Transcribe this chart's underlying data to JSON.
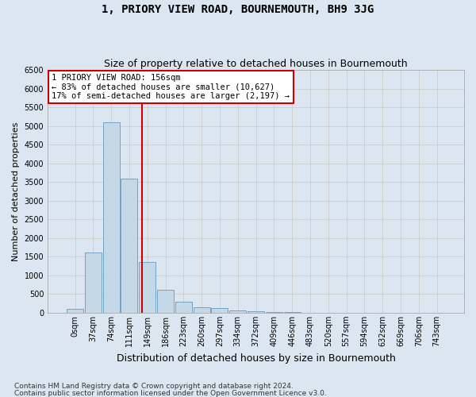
{
  "title": "1, PRIORY VIEW ROAD, BOURNEMOUTH, BH9 3JG",
  "subtitle": "Size of property relative to detached houses in Bournemouth",
  "xlabel": "Distribution of detached houses by size in Bournemouth",
  "ylabel": "Number of detached properties",
  "footnote1": "Contains HM Land Registry data © Crown copyright and database right 2024.",
  "footnote2": "Contains public sector information licensed under the Open Government Licence v3.0.",
  "bar_labels": [
    "0sqm",
    "37sqm",
    "74sqm",
    "111sqm",
    "149sqm",
    "186sqm",
    "223sqm",
    "260sqm",
    "297sqm",
    "334sqm",
    "372sqm",
    "409sqm",
    "446sqm",
    "483sqm",
    "520sqm",
    "557sqm",
    "594sqm",
    "632sqm",
    "669sqm",
    "706sqm",
    "743sqm"
  ],
  "bar_values": [
    100,
    1620,
    5100,
    3600,
    1350,
    610,
    300,
    150,
    120,
    60,
    45,
    20,
    10,
    5,
    5,
    2,
    2,
    1,
    1,
    1,
    0
  ],
  "bar_color": "#c5d8e8",
  "bar_edge_color": "#6699bb",
  "annotation_line1": "1 PRIORY VIEW ROAD: 156sqm",
  "annotation_line2": "← 83% of detached houses are smaller (10,627)",
  "annotation_line3": "17% of semi-detached houses are larger (2,197) →",
  "vline_color": "#cc0000",
  "annotation_box_facecolor": "#ffffff",
  "annotation_box_edgecolor": "#cc0000",
  "grid_color": "#cccccc",
  "background_color": "#dce6f0",
  "plot_bg_color": "#dce6f0",
  "ylim_max": 6500,
  "bin_width": 37,
  "property_sqm": 156,
  "title_fontsize": 10,
  "subtitle_fontsize": 9,
  "ylabel_fontsize": 8,
  "xlabel_fontsize": 9,
  "tick_fontsize": 7,
  "annotation_fontsize": 7.5,
  "footnote_fontsize": 6.5
}
